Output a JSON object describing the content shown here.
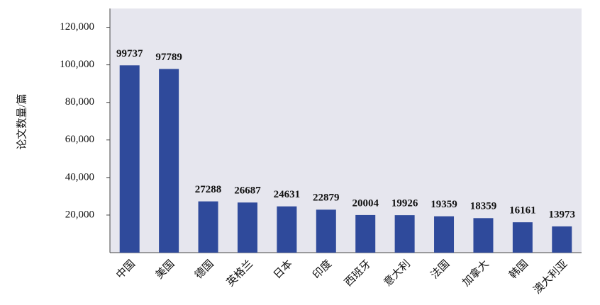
{
  "chart_data": {
    "type": "bar",
    "y_label": "论文数量/篇",
    "categories": [
      "中国",
      "美国",
      "德国",
      "英格兰",
      "日本",
      "印度",
      "西班牙",
      "意大利",
      "法国",
      "加拿大",
      "韩国",
      "澳大利亚"
    ],
    "values": [
      99737,
      97789,
      27288,
      26687,
      24631,
      22879,
      20004,
      19926,
      19359,
      18359,
      16161,
      13973
    ],
    "color": "#2f4a9b",
    "ylim": [
      0,
      130000
    ],
    "yticks": [
      {
        "value": 20000,
        "label": "20,000"
      },
      {
        "value": 40000,
        "label": "40,000"
      },
      {
        "value": 60000,
        "label": "60,000"
      },
      {
        "value": 80000,
        "label": "80,000"
      },
      {
        "value": 100000,
        "label": "100,000"
      },
      {
        "value": 120000,
        "label": "120,000"
      }
    ]
  }
}
